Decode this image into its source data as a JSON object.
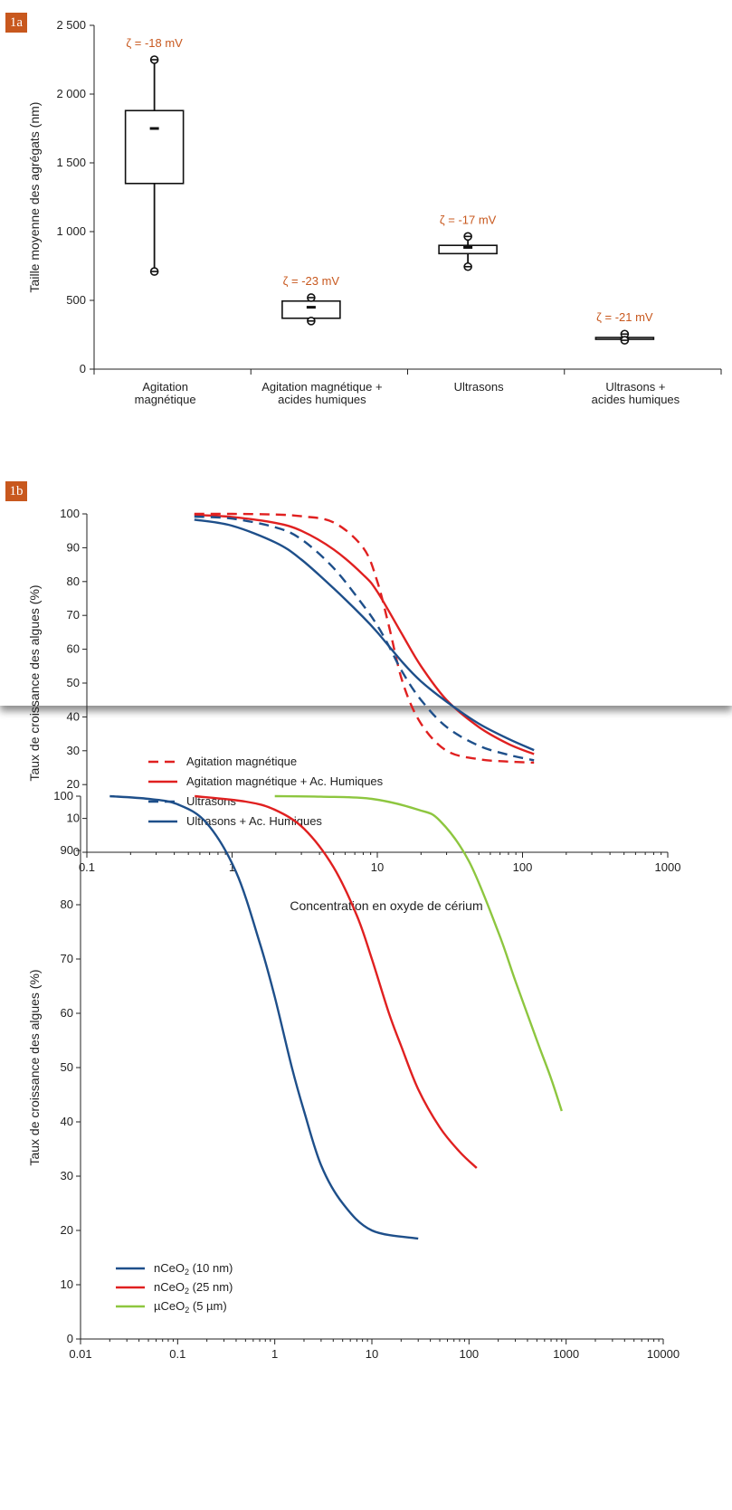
{
  "panels": [
    {
      "tag": "1a"
    },
    {
      "tag": "1b"
    }
  ],
  "chart_data": [
    {
      "type": "box",
      "ylabel": "Taille moyenne des agrégats (nm)",
      "ylim": [
        0,
        2500
      ],
      "yticks": [
        0,
        500,
        1000,
        1500,
        2000,
        2500
      ],
      "ytick_labels": [
        "0",
        "500",
        "1 000",
        "1 500",
        "2 000",
        "2 500"
      ],
      "categories": [
        [
          "Agitation",
          "magnétique"
        ],
        [
          "Agitation magnétique +",
          "acides humiques"
        ],
        [
          "Ultrasons"
        ],
        [
          "Ultrasons +",
          "acides humiques"
        ]
      ],
      "boxes": [
        {
          "min": 710,
          "q1": 1350,
          "mean": 1750,
          "q3": 1880,
          "max": 2250,
          "zeta": "ζ = -18 mV"
        },
        {
          "min": 350,
          "q1": 370,
          "mean": 450,
          "q3": 495,
          "max": 520,
          "zeta": "ζ = -23 mV"
        },
        {
          "min": 745,
          "q1": 840,
          "mean": 885,
          "q3": 900,
          "max": 965,
          "zeta": "ζ = -17 mV"
        },
        {
          "min": 210,
          "q1": 220,
          "mean": 225,
          "q3": 230,
          "max": 255,
          "zeta": "ζ = -21 mV"
        }
      ]
    },
    {
      "type": "line",
      "xscale": "log",
      "xlabel": "Concentration en oxyde de cérium",
      "ylabel": "Taux de croissance des algues (%)",
      "xlim": [
        0.1,
        1000
      ],
      "ylim": [
        0,
        100
      ],
      "xticks": [
        0.1,
        1,
        10,
        100,
        1000
      ],
      "xtick_labels": [
        "0.1",
        "1",
        "10",
        "100",
        "1000"
      ],
      "yticks": [
        0,
        10,
        20,
        30,
        40,
        50,
        60,
        70,
        80,
        90,
        100
      ],
      "ytick_labels": [
        "0",
        "10",
        "20",
        "30",
        "40",
        "50",
        "60",
        "70",
        "80",
        "90",
        "100"
      ],
      "legend": "bottom-left",
      "series": [
        {
          "name": "Agitation magnétique",
          "color": "#e02020",
          "dash": true,
          "x": [
            0.55,
            1,
            2,
            3,
            5,
            8,
            10,
            12,
            15,
            20,
            30,
            50,
            80,
            120
          ],
          "y": [
            100,
            100,
            99.8,
            99.3,
            97.5,
            90,
            80,
            67,
            50,
            38,
            30,
            27.5,
            26.8,
            26.5
          ]
        },
        {
          "name": "Agitation magnétique + Ac. Humiques",
          "color": "#e02020",
          "dash": false,
          "x": [
            0.55,
            1,
            2,
            3,
            5,
            8,
            10,
            15,
            20,
            30,
            50,
            80,
            120
          ],
          "y": [
            99.7,
            99.1,
            97.3,
            95,
            89.5,
            82,
            77,
            64,
            55,
            45,
            37,
            32,
            29
          ]
        },
        {
          "name": "Ultrasons",
          "color": "#1e4f8a",
          "dash": true,
          "x": [
            0.55,
            1,
            2,
            3,
            5,
            8,
            10,
            12,
            15,
            20,
            30,
            50,
            80,
            120
          ],
          "y": [
            99.2,
            98.6,
            96,
            92.5,
            84,
            73,
            67,
            61,
            53,
            45,
            37,
            31.5,
            28.8,
            27.2
          ]
        },
        {
          "name": "Ultrasons + Ac. Humiques",
          "color": "#1e4f8a",
          "dash": false,
          "x": [
            0.55,
            1,
            2,
            3,
            5,
            8,
            10,
            15,
            20,
            30,
            50,
            80,
            120
          ],
          "y": [
            98.3,
            96.5,
            91.5,
            86.5,
            78,
            69.5,
            65,
            56,
            50.5,
            44.5,
            38,
            33.5,
            30.2
          ]
        }
      ]
    },
    {
      "type": "line",
      "xscale": "log",
      "ylabel": "Taux de croissance des algues (%)",
      "xlim": [
        0.01,
        10000
      ],
      "ylim": [
        0,
        100
      ],
      "xticks": [
        0.01,
        0.1,
        1,
        10,
        100,
        1000,
        10000
      ],
      "xtick_labels": [
        "0.01",
        "0.1",
        "1",
        "10",
        "100",
        "1000",
        "10000"
      ],
      "yticks": [
        0,
        10,
        20,
        30,
        40,
        50,
        60,
        70,
        80,
        90,
        100
      ],
      "ytick_labels": [
        "0",
        "10",
        "20",
        "30",
        "40",
        "50",
        "60",
        "70",
        "80",
        "90",
        "100"
      ],
      "legend": "bottom-left",
      "series": [
        {
          "name": "nCeO",
          "name_sub": "2",
          "name_suffix": " (10 nm)",
          "color": "#1e4f8a",
          "x": [
            0.02,
            0.05,
            0.1,
            0.2,
            0.4,
            0.7,
            1,
            1.5,
            2,
            3,
            5,
            10,
            30
          ],
          "y": [
            100,
            99.5,
            98.5,
            95,
            86,
            73,
            63,
            50,
            42,
            32,
            25,
            20,
            18.5
          ]
        },
        {
          "name": "nCeO",
          "name_sub": "2",
          "name_suffix": " (25 nm)",
          "color": "#e02020",
          "x": [
            0.15,
            0.5,
            1,
            2,
            4,
            7,
            10,
            15,
            20,
            30,
            50,
            80,
            120
          ],
          "y": [
            100,
            99,
            97.5,
            94,
            87,
            78,
            70,
            60,
            54,
            46,
            39,
            34.5,
            31.5
          ]
        },
        {
          "name": "µCeO",
          "name_sub": "2",
          "name_suffix": " (5 µm)",
          "color": "#8dc63f",
          "x": [
            1,
            3,
            10,
            30,
            50,
            100,
            200,
            300,
            500,
            700,
            900
          ],
          "y": [
            100,
            99.9,
            99.5,
            97.5,
            95.5,
            88,
            75,
            66,
            55,
            48,
            42
          ]
        }
      ]
    }
  ]
}
